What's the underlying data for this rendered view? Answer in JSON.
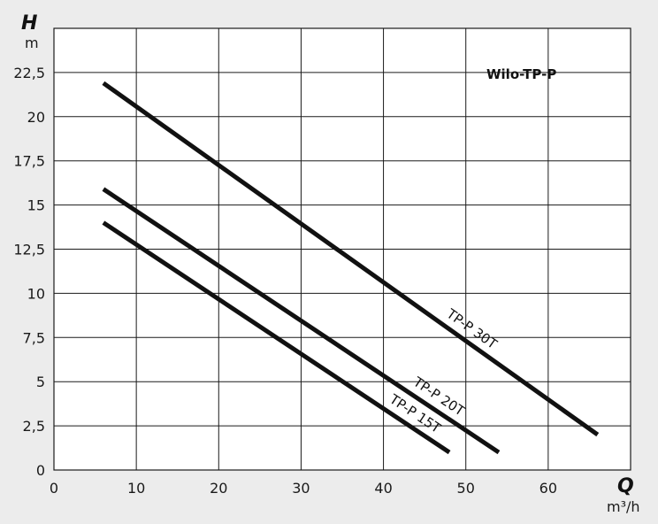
{
  "chart_data": {
    "type": "line",
    "title": "Wilo-TP-P",
    "x_symbol": "Q",
    "x_unit": "m³/h",
    "y_symbol": "H",
    "y_unit": "m",
    "xlim": [
      0,
      70
    ],
    "ylim": [
      0,
      25
    ],
    "x_ticks": [
      "0",
      "10",
      "20",
      "30",
      "40",
      "50",
      "60"
    ],
    "y_ticks": [
      "0",
      "2,5",
      "5",
      "7,5",
      "10",
      "12,5",
      "15",
      "17,5",
      "20",
      "22,5"
    ],
    "grid": true,
    "series": [
      {
        "name": "TP-P 30T",
        "x": [
          6,
          66
        ],
        "y": [
          21.9,
          2.0
        ]
      },
      {
        "name": "TP-P 20T",
        "x": [
          6,
          54
        ],
        "y": [
          15.9,
          1.0
        ]
      },
      {
        "name": "TP-P 15T",
        "x": [
          6,
          48
        ],
        "y": [
          14.0,
          1.0
        ]
      }
    ]
  }
}
